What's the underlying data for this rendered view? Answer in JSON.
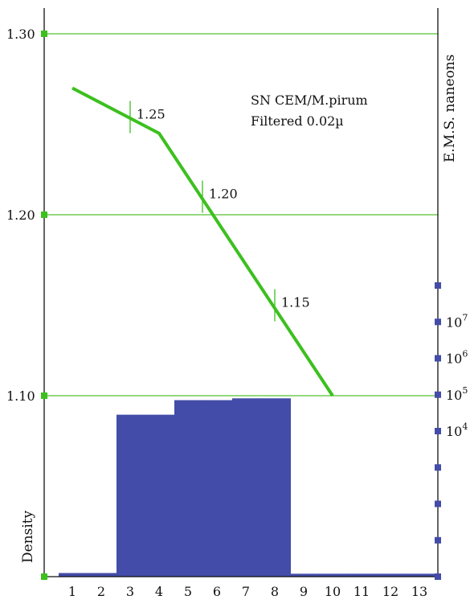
{
  "chart_data": {
    "type": "bar",
    "categories": [
      "1",
      "2",
      "3",
      "4",
      "5",
      "6",
      "7",
      "8",
      "9",
      "10",
      "11",
      "12",
      "13"
    ],
    "values": [
      0.1,
      0.1,
      4.45,
      4.45,
      4.85,
      4.85,
      4.9,
      4.9,
      0.08,
      0.08,
      0.08,
      0.08,
      0.08
    ],
    "bar_color": "#434ca8",
    "line_color": "#3cc01e",
    "grid_color": "#55c032",
    "left_axis": {
      "label": "Density",
      "ticks": [
        "1.30",
        "1.20",
        "1.10"
      ],
      "tick_values": [
        1.3,
        1.2,
        1.1
      ],
      "range": [
        1.0,
        1.3
      ]
    },
    "right_axis": {
      "label": "E.M.S. naneons",
      "range": [
        0,
        8
      ],
      "marker_values": [
        0,
        1,
        2,
        3,
        4,
        5,
        6,
        7,
        8
      ],
      "labels": [
        {
          "base": "10",
          "exp": "7",
          "value": 7
        },
        {
          "base": "10",
          "exp": "6",
          "value": 6
        },
        {
          "base": "10",
          "exp": "5",
          "value": 5
        },
        {
          "base": "10",
          "exp": "4",
          "value": 4
        }
      ]
    },
    "density_line": {
      "x": [
        1,
        4,
        10
      ],
      "y": [
        1.27,
        1.245,
        1.1
      ]
    },
    "annotations": [
      {
        "text": "1.25",
        "x": 3.0,
        "y": 1.254
      },
      {
        "text": "1.20",
        "x": 5.5,
        "y": 1.21
      },
      {
        "text": "1.15",
        "x": 8.0,
        "y": 1.15
      }
    ],
    "title_lines": [
      "SN CEM/M.pirum",
      "Filtered 0.02µ"
    ]
  }
}
